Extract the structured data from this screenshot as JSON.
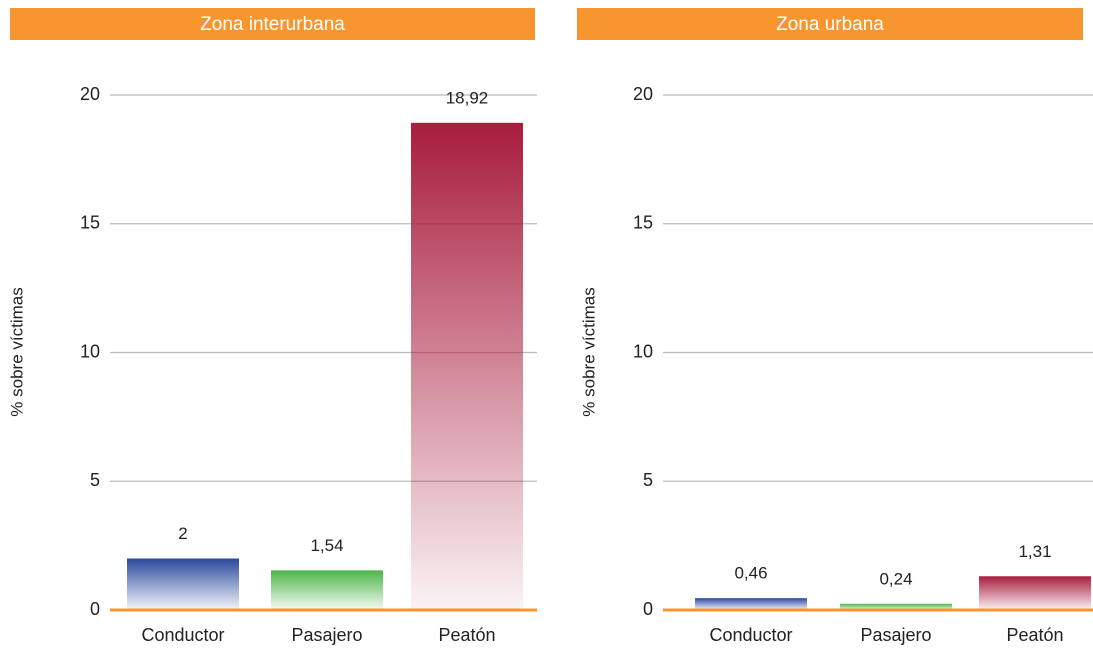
{
  "chart_data": [
    {
      "type": "bar",
      "title": "Zona interurbana",
      "ylabel": "% sobre víctimas",
      "categories": [
        "Conductor",
        "Pasajero",
        "Peatón"
      ],
      "values": [
        2,
        1.54,
        18.92
      ],
      "value_labels": [
        "2",
        "1,54",
        "18,92"
      ],
      "colors": [
        "#2b4a9f",
        "#4cb548",
        "#a81c3d"
      ],
      "ylim": [
        0,
        20
      ],
      "yticks": [
        0,
        5,
        10,
        15,
        20
      ],
      "grid": true
    },
    {
      "type": "bar",
      "title": "Zona urbana",
      "ylabel": "% sobre víctimas",
      "categories": [
        "Conductor",
        "Pasajero",
        "Peatón"
      ],
      "values": [
        0.46,
        0.24,
        1.31
      ],
      "value_labels": [
        "0,46",
        "0,24",
        "1,31"
      ],
      "colors": [
        "#2b4a9f",
        "#4cb548",
        "#a81c3d"
      ],
      "ylim": [
        0,
        20
      ],
      "yticks": [
        0,
        5,
        10,
        15,
        20
      ],
      "grid": true
    }
  ]
}
